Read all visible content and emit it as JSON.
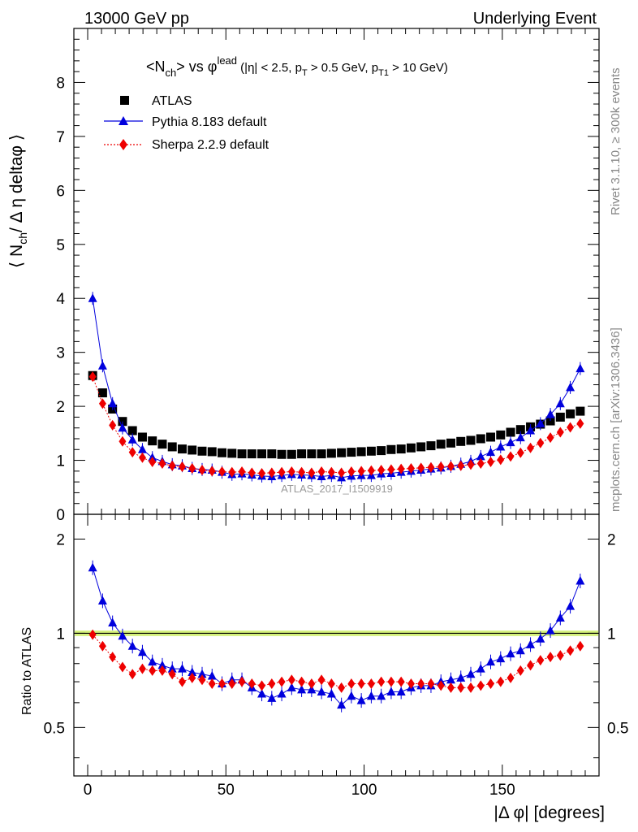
{
  "header": {
    "left": "13000 GeV pp",
    "right": "Underlying Event"
  },
  "side_labels": {
    "rivet": "Rivet 3.1.10, ≥ 300k events",
    "mcplots": "mcplots.cern.ch [arXiv:1306.3436]"
  },
  "watermark": "ATLAS_2017_I1509919",
  "title": {
    "main": "<N",
    "sub_ch": "ch",
    "main2": "> vs φ",
    "sup_lead": "lead",
    "cuts1": " (|η| < 2.5, p",
    "sub_T": "T",
    "cuts2": " > 0.5 GeV, p",
    "sub_T1": "T1",
    "cuts3": " > 10 GeV)"
  },
  "y_label_top": "⟨ N",
  "y_label_top_sub": "ch",
  "y_label_top_rest": "/ Δ η deltaφ ⟩",
  "y_label_bottom": "Ratio to ATLAS",
  "x_label": "|Δ φ| [degrees]",
  "legend": [
    {
      "label": "ATLAS",
      "color": "#000000",
      "marker": "square"
    },
    {
      "label": "Pythia 8.183 default",
      "color": "#0000dd",
      "marker": "triangle"
    },
    {
      "label": "Sherpa 2.2.9 default",
      "color": "#ee0000",
      "marker": "diamond"
    }
  ],
  "chart_data": [
    {
      "type": "scatter",
      "title": "<Nch> vs φlead (|η| < 2.5, pT > 0.5 GeV, pT1 > 10 GeV)",
      "xlabel": "|Δ φ| [degrees]",
      "ylabel": "⟨ Nch / Δ η deltaφ ⟩",
      "xlim": [
        -5,
        185
      ],
      "ylim": [
        0,
        9
      ],
      "x_ticks": [
        "0",
        "50",
        "100",
        "150"
      ],
      "y_ticks": [
        "0",
        "1",
        "2",
        "3",
        "4",
        "5",
        "6",
        "7",
        "8"
      ],
      "x": [
        1.8,
        5.4,
        9,
        12.6,
        16.2,
        19.8,
        23.4,
        27,
        30.6,
        34.2,
        37.8,
        41.4,
        45,
        48.6,
        52.2,
        55.8,
        59.4,
        63,
        66.6,
        70.2,
        73.8,
        77.4,
        81,
        84.6,
        88.2,
        91.8,
        95.4,
        99,
        102.6,
        106.2,
        109.8,
        113.4,
        117,
        120.6,
        124.2,
        127.8,
        131.4,
        135,
        138.6,
        142.2,
        145.8,
        149.4,
        153,
        156.6,
        160.2,
        163.8,
        167.4,
        171,
        174.6,
        178.2
      ],
      "series": [
        {
          "name": "ATLAS",
          "color": "#000000",
          "values": [
            2.57,
            2.25,
            1.95,
            1.72,
            1.55,
            1.43,
            1.36,
            1.3,
            1.25,
            1.21,
            1.19,
            1.17,
            1.16,
            1.14,
            1.13,
            1.12,
            1.12,
            1.12,
            1.12,
            1.11,
            1.11,
            1.12,
            1.12,
            1.12,
            1.13,
            1.14,
            1.15,
            1.16,
            1.17,
            1.18,
            1.2,
            1.21,
            1.23,
            1.25,
            1.27,
            1.3,
            1.32,
            1.35,
            1.37,
            1.4,
            1.43,
            1.47,
            1.52,
            1.57,
            1.62,
            1.67,
            1.73,
            1.8,
            1.86,
            1.91
          ]
        },
        {
          "name": "Pythia 8.183 default",
          "color": "#0000dd",
          "values": [
            4.0,
            2.75,
            2.05,
            1.6,
            1.38,
            1.2,
            1.05,
            0.98,
            0.92,
            0.9,
            0.85,
            0.83,
            0.82,
            0.78,
            0.74,
            0.75,
            0.73,
            0.71,
            0.7,
            0.72,
            0.74,
            0.73,
            0.72,
            0.7,
            0.72,
            0.68,
            0.71,
            0.72,
            0.72,
            0.75,
            0.76,
            0.78,
            0.8,
            0.82,
            0.84,
            0.86,
            0.89,
            0.93,
            0.98,
            1.07,
            1.15,
            1.25,
            1.33,
            1.42,
            1.55,
            1.68,
            1.85,
            2.05,
            2.35,
            2.7
          ]
        },
        {
          "name": "Sherpa 2.2.9 default",
          "color": "#ee0000",
          "values": [
            2.55,
            2.05,
            1.65,
            1.35,
            1.15,
            1.05,
            0.97,
            0.94,
            0.9,
            0.88,
            0.85,
            0.82,
            0.8,
            0.79,
            0.78,
            0.79,
            0.77,
            0.76,
            0.77,
            0.78,
            0.79,
            0.78,
            0.77,
            0.79,
            0.78,
            0.77,
            0.79,
            0.8,
            0.81,
            0.82,
            0.83,
            0.84,
            0.85,
            0.86,
            0.87,
            0.88,
            0.89,
            0.9,
            0.92,
            0.94,
            0.97,
            1.01,
            1.07,
            1.14,
            1.23,
            1.32,
            1.42,
            1.52,
            1.61,
            1.68
          ]
        }
      ]
    },
    {
      "type": "scatter",
      "title": "Ratio to ATLAS",
      "xlabel": "|Δ φ| [degrees]",
      "ylabel": "Ratio to ATLAS",
      "xlim": [
        -5,
        185
      ],
      "ylim": [
        0.35,
        2.4
      ],
      "y_ticks": [
        "0.5",
        "1",
        "2"
      ],
      "x": [
        1.8,
        5.4,
        9,
        12.6,
        16.2,
        19.8,
        23.4,
        27,
        30.6,
        34.2,
        37.8,
        41.4,
        45,
        48.6,
        52.2,
        55.8,
        59.4,
        63,
        66.6,
        70.2,
        73.8,
        77.4,
        81,
        84.6,
        88.2,
        91.8,
        95.4,
        99,
        102.6,
        106.2,
        109.8,
        113.4,
        117,
        120.6,
        124.2,
        127.8,
        131.4,
        135,
        138.6,
        142.2,
        145.8,
        149.4,
        153,
        156.6,
        160.2,
        163.8,
        167.4,
        171,
        174.6,
        178.2
      ],
      "series": [
        {
          "name": "Pythia 8.183 default",
          "color": "#0000dd",
          "values": [
            1.62,
            1.27,
            1.08,
            0.98,
            0.91,
            0.87,
            0.81,
            0.79,
            0.77,
            0.77,
            0.75,
            0.74,
            0.73,
            0.69,
            0.71,
            0.71,
            0.67,
            0.64,
            0.62,
            0.64,
            0.67,
            0.66,
            0.66,
            0.65,
            0.64,
            0.59,
            0.63,
            0.61,
            0.63,
            0.63,
            0.65,
            0.65,
            0.67,
            0.68,
            0.68,
            0.7,
            0.71,
            0.72,
            0.74,
            0.77,
            0.81,
            0.83,
            0.86,
            0.88,
            0.92,
            0.96,
            1.02,
            1.12,
            1.22,
            1.47
          ]
        },
        {
          "name": "Sherpa 2.2.9 default",
          "color": "#ee0000",
          "values": [
            0.99,
            0.91,
            0.84,
            0.78,
            0.74,
            0.77,
            0.76,
            0.76,
            0.74,
            0.7,
            0.72,
            0.71,
            0.69,
            0.69,
            0.69,
            0.7,
            0.69,
            0.68,
            0.69,
            0.7,
            0.71,
            0.7,
            0.69,
            0.71,
            0.69,
            0.67,
            0.69,
            0.69,
            0.69,
            0.7,
            0.7,
            0.7,
            0.69,
            0.69,
            0.69,
            0.68,
            0.67,
            0.67,
            0.67,
            0.68,
            0.69,
            0.7,
            0.72,
            0.76,
            0.79,
            0.82,
            0.84,
            0.85,
            0.88,
            0.91
          ]
        }
      ]
    }
  ]
}
